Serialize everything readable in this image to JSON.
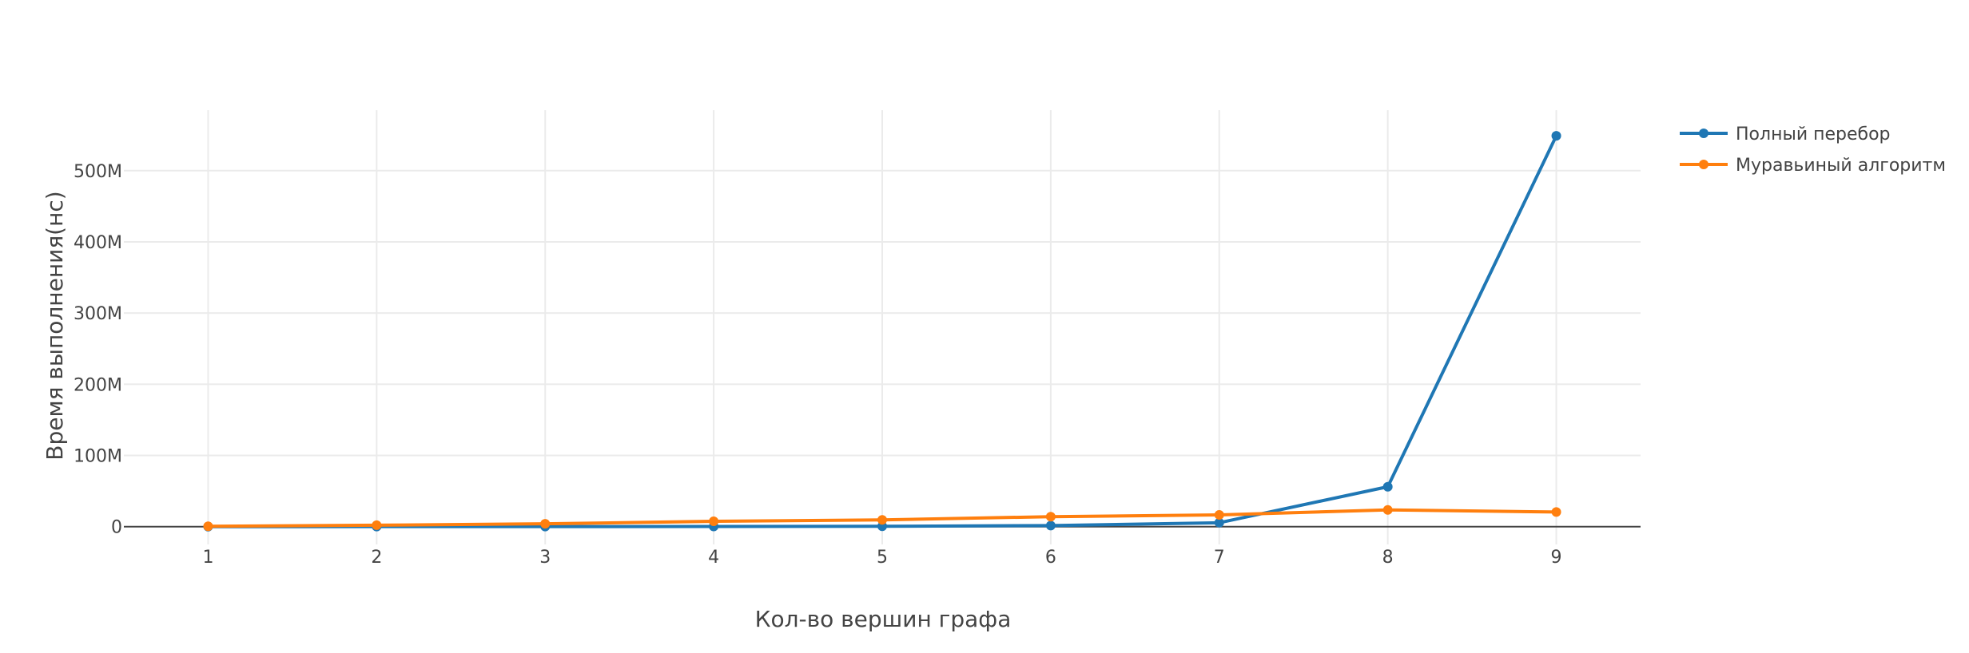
{
  "chart_data": {
    "type": "line",
    "title": "",
    "xlabel": "Кол-во вершин графа",
    "ylabel": "Время выполнения(нс)",
    "x": [
      1,
      2,
      3,
      4,
      5,
      6,
      7,
      8,
      9
    ],
    "xlim": [
      0.5,
      9.5
    ],
    "ylim": [
      -25000000,
      585000000
    ],
    "xticks": [
      1,
      2,
      3,
      4,
      5,
      6,
      7,
      8,
      9
    ],
    "xtick_labels": [
      "1",
      "2",
      "3",
      "4",
      "5",
      "6",
      "7",
      "8",
      "9"
    ],
    "yticks": [
      0,
      100000000,
      200000000,
      300000000,
      400000000,
      500000000
    ],
    "ytick_labels": [
      "0",
      "100M",
      "200M",
      "300M",
      "400M",
      "500M"
    ],
    "grid": true,
    "legend_position": "top-right",
    "series": [
      {
        "name": "Полный перебор",
        "color": "#1f77b4",
        "values": [
          10000,
          20000,
          100000,
          200000,
          500000,
          1500000,
          5500000,
          56000000,
          549000000
        ]
      },
      {
        "name": "Муравьиный алгоритм",
        "color": "#ff7f0e",
        "values": [
          500000,
          2000000,
          4000000,
          7500000,
          9500000,
          14000000,
          16500000,
          23500000,
          20500000
        ]
      }
    ]
  }
}
